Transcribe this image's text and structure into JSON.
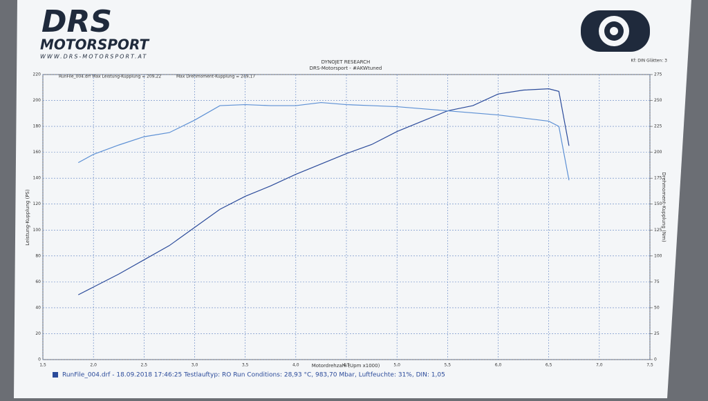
{
  "brand": {
    "logo": "DRS",
    "name": "MOTORSPORT",
    "url": "WWW.DRS-MOTORSPORT.AT"
  },
  "settings_note": "Kf: DIN  Glätten: 3",
  "chart_data": {
    "type": "line",
    "title": "DYNOJET RESEARCH",
    "subtitle": "DRS-Motorsport - #AKWtuned",
    "legend_title": "RunFile_004.drf Max Leistung-Kupplung = 209,22",
    "legend_title2": "Max Drehmoment-Kupplung = 249,17",
    "x_label": "Motordrehzahl (Upm x1000)",
    "y_label": "Leistung-Kupplung (PS)",
    "y2_label": "Drehmoment-Kupplung (Nm)",
    "x": [
      1.85,
      2.0,
      2.25,
      2.5,
      2.75,
      3.0,
      3.25,
      3.5,
      3.75,
      4.0,
      4.25,
      4.5,
      4.75,
      5.0,
      5.25,
      5.5,
      5.75,
      6.0,
      6.25,
      6.5,
      6.6,
      6.7
    ],
    "series": [
      {
        "name": "Leistung",
        "color": "#2a4a9a",
        "values": [
          50,
          56,
          66,
          77,
          88,
          102,
          116,
          126,
          134,
          143,
          151,
          159,
          166,
          176,
          184,
          192,
          196,
          205,
          208,
          209,
          207,
          165
        ]
      },
      {
        "name": "Drehmoment",
        "color": "#5b8fd4",
        "axis": "y2",
        "values": [
          190,
          198,
          207,
          215,
          219,
          231,
          245,
          246,
          245,
          245,
          248,
          246,
          245,
          244,
          242,
          240,
          238,
          236,
          233,
          230,
          225,
          173
        ]
      }
    ],
    "xlim": [
      1.5,
      7.5
    ],
    "xticks": [
      {
        "value": 1.5,
        "label": "1,5"
      },
      {
        "value": 2.0,
        "label": "2,0"
      },
      {
        "value": 2.5,
        "label": "2,5"
      },
      {
        "value": 3.0,
        "label": "3,0"
      },
      {
        "value": 3.5,
        "label": "3,5"
      },
      {
        "value": 4.0,
        "label": "4,0"
      },
      {
        "value": 4.5,
        "label": "4,5"
      },
      {
        "value": 5.0,
        "label": "5,0"
      },
      {
        "value": 5.5,
        "label": "5,5"
      },
      {
        "value": 6.0,
        "label": "6,0"
      },
      {
        "value": 6.5,
        "label": "6,5"
      },
      {
        "value": 7.0,
        "label": "7,0"
      },
      {
        "value": 7.5,
        "label": "7,5"
      }
    ],
    "ylim": [
      0,
      220
    ],
    "yticks": [
      0,
      20,
      40,
      60,
      80,
      100,
      120,
      140,
      160,
      180,
      200,
      220
    ],
    "y2lim": [
      0,
      275
    ],
    "y2ticks": [
      0,
      25,
      50,
      75,
      100,
      125,
      150,
      175,
      200,
      225,
      250,
      275
    ],
    "grid": true,
    "footer": "RunFile_004.drf - 18.09.2018 17:46:25   Testlauftyp: RO   Run Conditions: 28,93 °C, 983,70 Mbar,   Luftfeuchte: 31%, DIN: 1,05"
  }
}
